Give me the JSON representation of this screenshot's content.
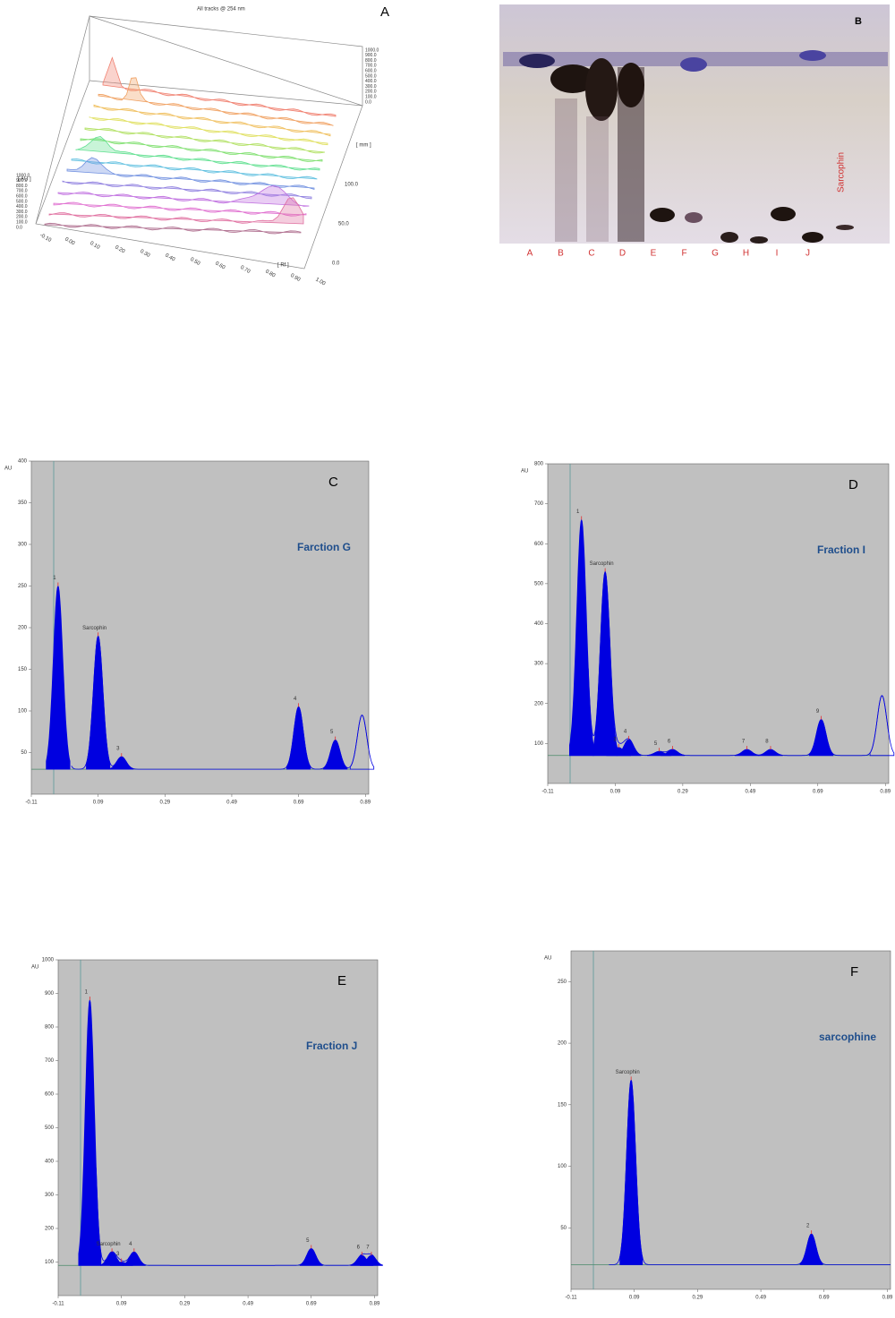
{
  "figure": {
    "panel_a": {
      "label": "A",
      "title": "All tracks @ 254 nm",
      "au_label": "[ AU ]",
      "mm_label": "[ mm ]",
      "rf_label": "[ Rf ]",
      "au_ticks": [
        "1000.0",
        "900.0",
        "800.0",
        "700.0",
        "600.0",
        "500.0",
        "400.0",
        "300.0",
        "200.0",
        "100.0",
        "0.0"
      ],
      "mm_ticks": [
        "100.0",
        "50.0",
        "0.0"
      ],
      "rf_ticks": [
        "-0.10",
        "0.00",
        "0.10",
        "0.20",
        "0.30",
        "0.40",
        "0.50",
        "0.60",
        "0.70",
        "0.80",
        "0.90",
        "1.00"
      ]
    },
    "panel_b": {
      "label": "B",
      "standard": "Sarcophin",
      "lanes": [
        "A",
        "B",
        "C",
        "D",
        "E",
        "F",
        "G",
        "H",
        "I",
        "J"
      ]
    }
  },
  "chart_data": [
    {
      "type": "chromatogram",
      "title": "C",
      "annotation": "Farction G",
      "y_label": "AU",
      "xlim": [
        -0.11,
        0.9
      ],
      "ylim": [
        0,
        400
      ],
      "xticks": [
        -0.11,
        0.09,
        0.29,
        0.49,
        0.69,
        0.89
      ],
      "yticks": [
        50,
        100,
        150,
        200,
        250,
        300,
        350,
        400
      ],
      "baseline": 30,
      "color": "#0000e0",
      "x": [
        -0.03,
        0.09,
        0.16,
        0.69,
        0.8,
        0.88
      ],
      "values": [
        250,
        190,
        45,
        105,
        65,
        95
      ],
      "labels": [
        "1",
        "Sarcophin",
        "3",
        "4",
        "5",
        null
      ]
    },
    {
      "type": "chromatogram",
      "title": "D",
      "annotation": "Fraction I",
      "y_label": "AU",
      "xlim": [
        -0.11,
        0.9
      ],
      "ylim": [
        0,
        800
      ],
      "xticks": [
        -0.11,
        0.09,
        0.29,
        0.49,
        0.69,
        0.89
      ],
      "yticks": [
        100,
        200,
        300,
        400,
        500,
        600,
        700,
        800
      ],
      "baseline": 70,
      "color": "#0000e0",
      "x": [
        -0.01,
        0.06,
        0.1,
        0.13,
        0.22,
        0.26,
        0.48,
        0.55,
        0.7,
        0.88
      ],
      "values": [
        660,
        530,
        90,
        110,
        80,
        85,
        85,
        85,
        160,
        220
      ],
      "labels": [
        "1",
        "Sarcophin",
        "3",
        "4",
        "5",
        "6",
        "7",
        "8",
        "9",
        null
      ]
    },
    {
      "type": "chromatogram",
      "title": "E",
      "annotation": "Fraction J",
      "y_label": "AU",
      "xlim": [
        -0.11,
        0.9
      ],
      "ylim": [
        0,
        1000
      ],
      "xticks": [
        -0.11,
        0.09,
        0.29,
        0.49,
        0.69,
        0.89
      ],
      "yticks": [
        100,
        200,
        300,
        400,
        500,
        600,
        700,
        800,
        900,
        1000
      ],
      "baseline": 90,
      "color": "#0000e0",
      "x": [
        -0.01,
        0.06,
        0.09,
        0.13,
        0.69,
        0.85,
        0.88
      ],
      "values": [
        880,
        130,
        100,
        130,
        140,
        120,
        120
      ],
      "labels": [
        "1",
        "Sarcophin",
        "3",
        "4",
        "5",
        "6",
        "7"
      ]
    },
    {
      "type": "chromatogram",
      "title": "F",
      "annotation": "sarcophine",
      "y_label": "AU",
      "xlim": [
        -0.11,
        0.9
      ],
      "ylim": [
        0,
        275
      ],
      "xticks": [
        -0.11,
        0.09,
        0.29,
        0.49,
        0.69,
        0.89
      ],
      "yticks": [
        50,
        100,
        150,
        200,
        250
      ],
      "baseline": 20,
      "color": "#0000e0",
      "x": [
        0.08,
        0.65
      ],
      "values": [
        170,
        45
      ],
      "labels": [
        "Sarcophin",
        "2"
      ]
    }
  ]
}
